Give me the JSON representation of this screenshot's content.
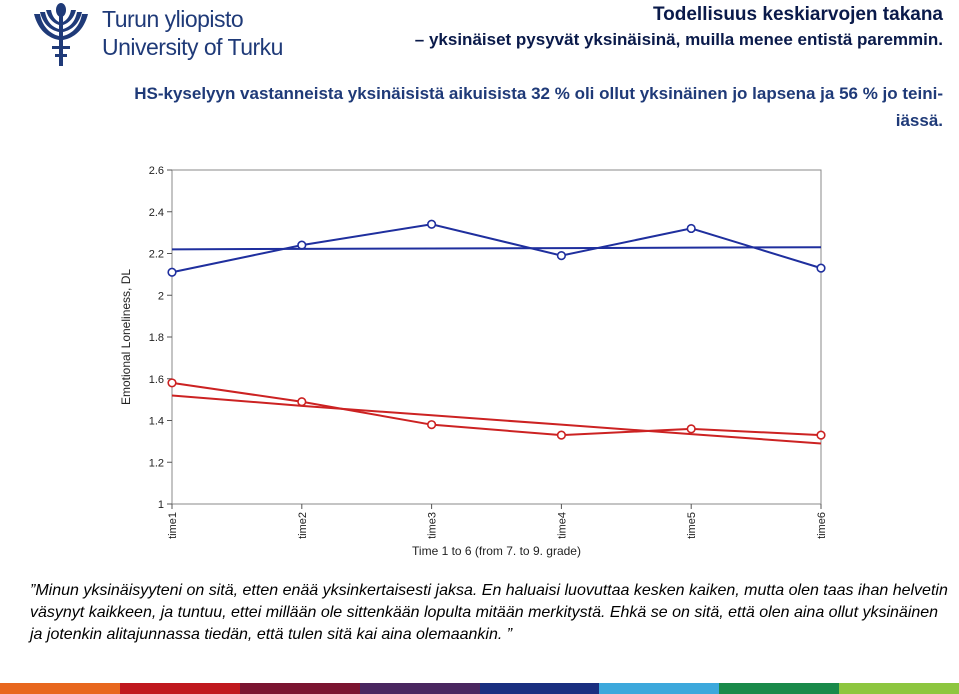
{
  "header": {
    "logo_line1": "Turun yliopisto",
    "logo_line2": "University of Turku",
    "title": "Todellisuus keskiarvojen takana",
    "subtitle": "– yksinäiset pysyvät yksinäisinä, muilla menee entistä paremmin."
  },
  "lead_text": "HS-kyselyyn vastanneista yksinäisistä aikuisista 32 % oli ollut yksinäinen jo lapsena ja 56 % jo teini-iässä.",
  "quote_text": "”Minun yksinäisyyteni on sitä, etten enää yksinkertaisesti jaksa. En haluaisi luovuttaa kesken kaiken, mutta olen taas ihan helvetin väsynyt kaikkeen, ja tuntuu, ettei millään ole sittenkään lopulta mitään merkitystä. Ehkä se on sitä, että olen aina ollut yksinäinen ja jotenkin alitajunnassa tiedän, että tulen sitä kai aina olemaankin. ”",
  "chart_data": {
    "type": "line",
    "title": "",
    "xlabel": "Time 1 to 6 (from 7. to 9. grade)",
    "ylabel": "Emotional Loneliness, DL",
    "categories": [
      "time1",
      "time2",
      "time3",
      "time4",
      "time5",
      "time6"
    ],
    "yticks": [
      "1",
      "1.2",
      "1.4",
      "1.6",
      "1.8",
      "2",
      "2.2",
      "2.4",
      "2.6"
    ],
    "ylim": [
      1,
      2.6
    ],
    "grid": false,
    "series": [
      {
        "color": "#1f2f9e",
        "markers": true,
        "values": [
          2.11,
          2.24,
          2.34,
          2.19,
          2.32,
          2.13
        ]
      },
      {
        "color": "#1f2f9e",
        "markers": false,
        "values": [
          2.22,
          2.222,
          2.224,
          2.226,
          2.228,
          2.23
        ]
      },
      {
        "color": "#cc2222",
        "markers": true,
        "values": [
          1.58,
          1.49,
          1.38,
          1.33,
          1.36,
          1.33
        ]
      },
      {
        "color": "#cc2222",
        "markers": false,
        "values": [
          1.52,
          1.47,
          1.425,
          1.38,
          1.335,
          1.29
        ]
      }
    ]
  },
  "footer_colors": [
    "#e8671e",
    "#c0181e",
    "#7b1430",
    "#4a2760",
    "#1a2f80",
    "#3ca8dc",
    "#1a8a4a",
    "#8dc63f"
  ]
}
